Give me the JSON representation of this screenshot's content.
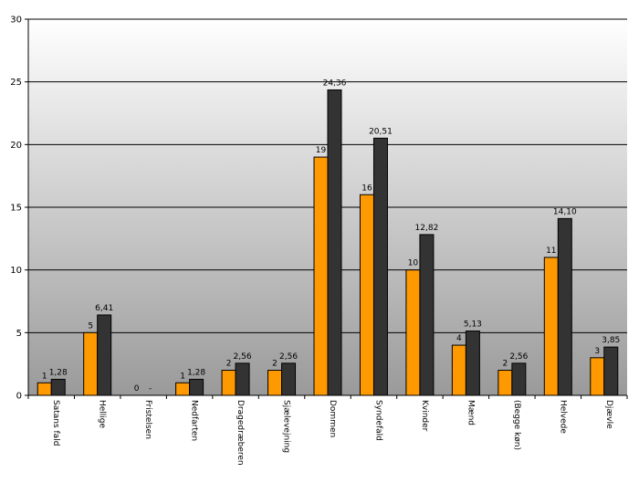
{
  "chart_data": {
    "type": "bar",
    "title": "",
    "xlabel": "",
    "ylabel": "",
    "ylim": [
      0,
      30
    ],
    "yticks": [
      0,
      5,
      10,
      15,
      20,
      25,
      30
    ],
    "grid": true,
    "legend": "none",
    "categories": [
      "Satans fald",
      "Hellige",
      "Fristelsen",
      "Nedfarten",
      "Dragedræberen",
      "Sjælevejning",
      "Dommen",
      "Syndefald",
      "Kvinder",
      "Mænd",
      "(Begge køn)",
      "Helvede",
      "Djævle"
    ],
    "series": [
      {
        "values": [
          1,
          5,
          0,
          1,
          2,
          2,
          19,
          16,
          10,
          4,
          2,
          11,
          3
        ],
        "labels": [
          "1",
          "5",
          "0",
          "1",
          "2",
          "2",
          "19",
          "16",
          "10",
          "4",
          "2",
          "11",
          "3"
        ],
        "color": "#ff9900"
      },
      {
        "values": [
          1.28,
          6.41,
          0,
          1.28,
          2.56,
          2.56,
          24.36,
          20.51,
          12.82,
          5.13,
          2.56,
          14.1,
          3.85
        ],
        "labels": [
          "1,28",
          "6,41",
          "-",
          "1,28",
          "2,56",
          "2,56",
          "24,36",
          "20,51",
          "12,82",
          "5,13",
          "2,56",
          "14,10",
          "3,85"
        ],
        "color": "#333333"
      }
    ],
    "plot_background": [
      "#ffffff",
      "#9a9a9a"
    ]
  }
}
